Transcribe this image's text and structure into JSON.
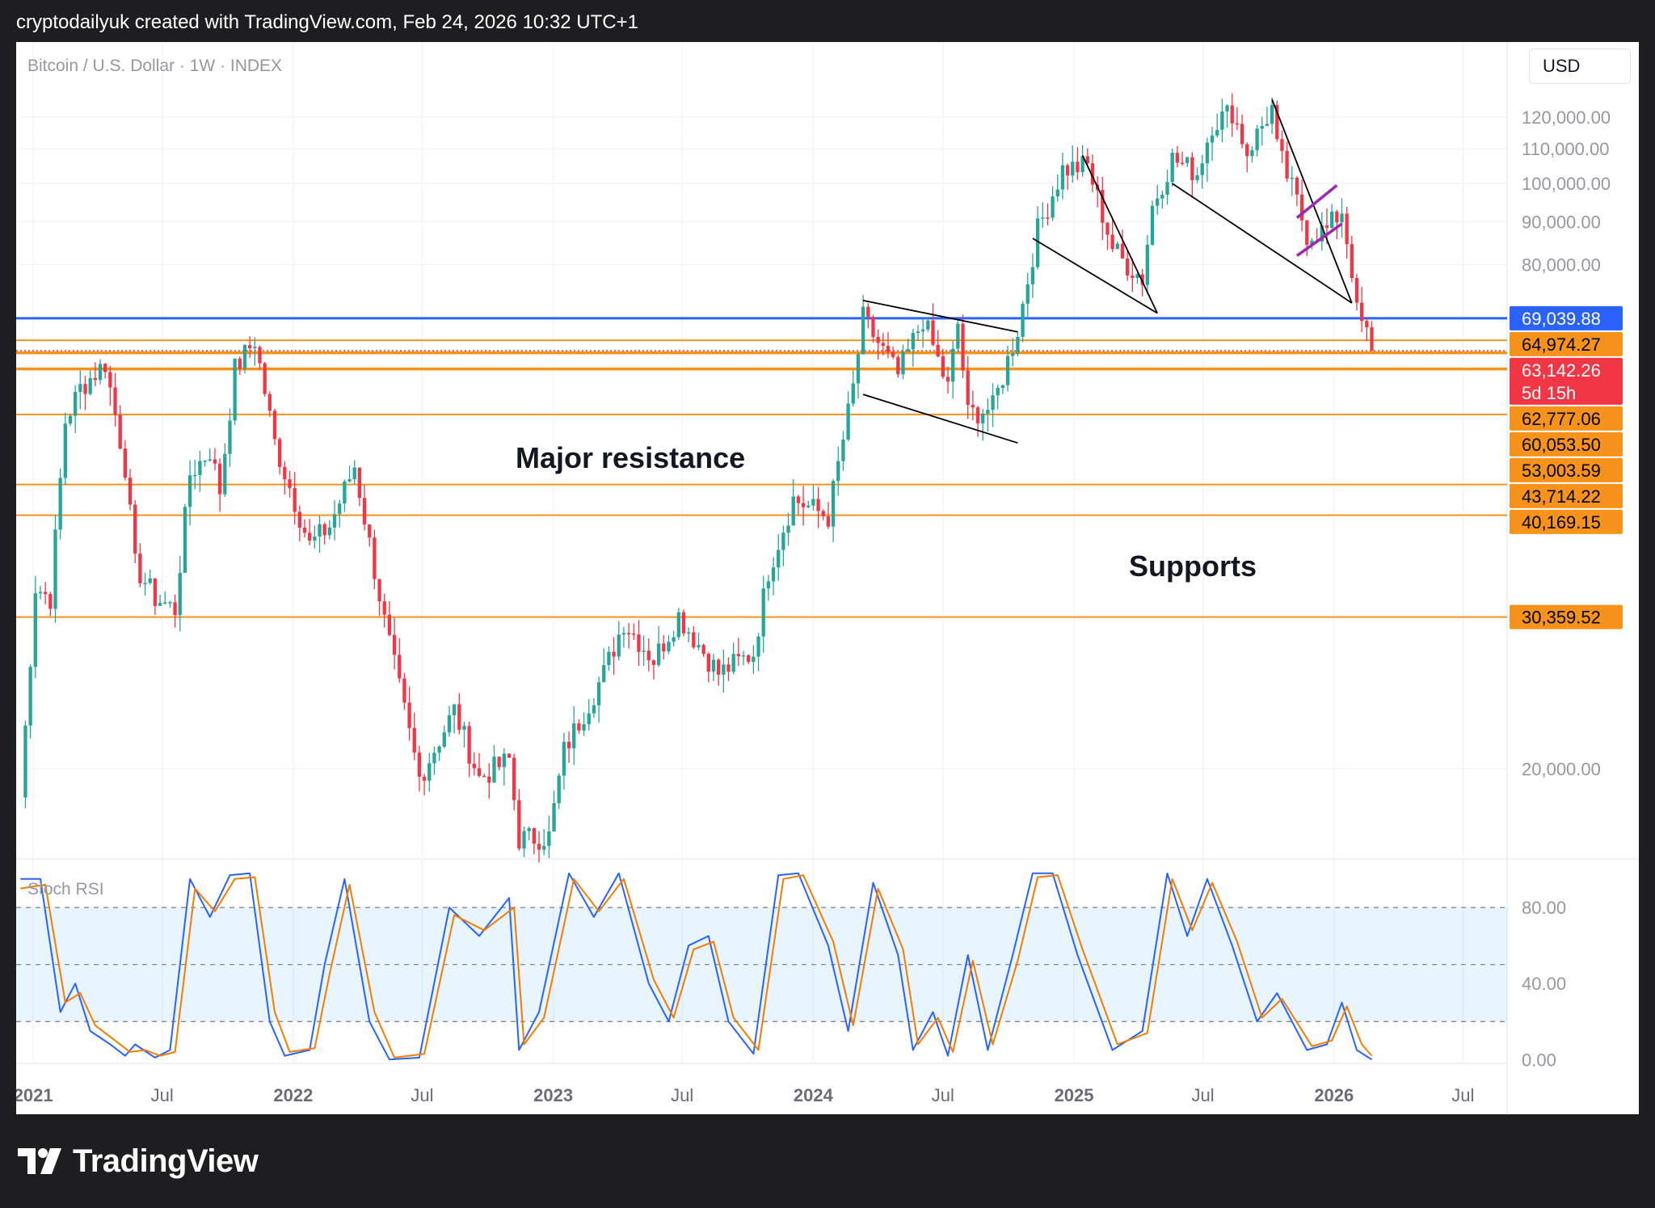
{
  "header": {
    "attribution": "cryptodailyuk created with TradingView.com, Feb 24, 2026 10:32 UTC+1"
  },
  "currency_button": "USD",
  "footer": {
    "brand": "TradingView"
  },
  "colors": {
    "up": "#26a69a",
    "down": "#f23645",
    "resistance": "#2962ff",
    "support": "#f7931a",
    "current": "#f23645",
    "stoch_k": "#2962ff",
    "stoch_d": "#f57c00",
    "pattern": "#000000",
    "flag": "#9c27b0"
  },
  "annotations": {
    "resistance": "Major resistance",
    "supports": "Supports"
  },
  "chart_data": [
    {
      "type": "candlestick",
      "title": "Bitcoin / U.S. Dollar · 1W · INDEX",
      "y_scale": "log",
      "y_ticks": [
        20000,
        80000,
        90000,
        100000,
        110000,
        120000
      ],
      "y_tick_labels": [
        "20,000.00",
        "80,000.00",
        "90,000.00",
        "100,000.00",
        "110,000.00",
        "120,000.00"
      ],
      "x_tick_labels": [
        "2021",
        "Jul",
        "2022",
        "Jul",
        "2023",
        "Jul",
        "2024",
        "Jul",
        "2025",
        "Jul",
        "2026",
        "Jul"
      ],
      "x_ticks": [
        "2021-01-01",
        "2021-07-01",
        "2022-01-01",
        "2022-07-01",
        "2023-01-01",
        "2023-07-01",
        "2024-01-01",
        "2024-07-01",
        "2025-01-01",
        "2025-07-01",
        "2026-01-01",
        "2026-07-01"
      ],
      "x_range": [
        "2020-12-08",
        "2026-09-01"
      ],
      "y_range": [
        16000,
        135000
      ],
      "grid": true,
      "anchor_points": [
        [
          "2020-12-14",
          18500
        ],
        [
          "2021-01-04",
          33000
        ],
        [
          "2021-01-25",
          32000
        ],
        [
          "2021-02-15",
          52000
        ],
        [
          "2021-03-08",
          57000
        ],
        [
          "2021-04-12",
          61000
        ],
        [
          "2021-05-10",
          46000
        ],
        [
          "2021-05-24",
          35000
        ],
        [
          "2021-06-21",
          32000
        ],
        [
          "2021-07-19",
          31000
        ],
        [
          "2021-08-09",
          45000
        ],
        [
          "2021-09-06",
          48000
        ],
        [
          "2021-09-20",
          43000
        ],
        [
          "2021-10-11",
          60000
        ],
        [
          "2021-11-08",
          65000
        ],
        [
          "2021-12-06",
          49000
        ],
        [
          "2022-01-24",
          37000
        ],
        [
          "2022-02-21",
          39000
        ],
        [
          "2022-03-28",
          46000
        ],
        [
          "2022-05-09",
          30000
        ],
        [
          "2022-06-13",
          22000
        ],
        [
          "2022-06-27",
          19500
        ],
        [
          "2022-08-15",
          23500
        ],
        [
          "2022-09-19",
          19500
        ],
        [
          "2022-10-31",
          20500
        ],
        [
          "2022-11-14",
          16500
        ],
        [
          "2022-12-26",
          16600
        ],
        [
          "2023-01-16",
          21000
        ],
        [
          "2023-02-20",
          24000
        ],
        [
          "2023-03-13",
          26000
        ],
        [
          "2023-04-10",
          30000
        ],
        [
          "2023-05-22",
          27000
        ],
        [
          "2023-06-26",
          30500
        ],
        [
          "2023-08-21",
          26000
        ],
        [
          "2023-10-09",
          27500
        ],
        [
          "2023-10-30",
          34500
        ],
        [
          "2023-12-04",
          42000
        ],
        [
          "2024-01-22",
          40000
        ],
        [
          "2024-02-26",
          57000
        ],
        [
          "2024-03-11",
          69000
        ],
        [
          "2024-04-29",
          59000
        ],
        [
          "2024-06-03",
          69000
        ],
        [
          "2024-07-08",
          57000
        ],
        [
          "2024-07-22",
          68000
        ],
        [
          "2024-08-05",
          53000
        ],
        [
          "2024-09-09",
          54000
        ],
        [
          "2024-10-14",
          67000
        ],
        [
          "2024-11-11",
          88000
        ],
        [
          "2024-12-16",
          104000
        ],
        [
          "2025-01-20",
          105000
        ],
        [
          "2025-02-24",
          84000
        ],
        [
          "2025-03-10",
          81000
        ],
        [
          "2025-04-07",
          77000
        ],
        [
          "2025-04-21",
          94000
        ],
        [
          "2025-05-19",
          107000
        ],
        [
          "2025-06-23",
          103000
        ],
        [
          "2025-07-14",
          118000
        ],
        [
          "2025-08-11",
          122000
        ],
        [
          "2025-09-01",
          109000
        ],
        [
          "2025-10-06",
          123000
        ],
        [
          "2025-10-13",
          110000
        ],
        [
          "2025-11-10",
          95000
        ],
        [
          "2025-11-24",
          87000
        ],
        [
          "2025-12-22",
          88000
        ],
        [
          "2026-01-12",
          93000
        ],
        [
          "2026-01-26",
          79000
        ],
        [
          "2026-02-02",
          70000
        ],
        [
          "2026-02-16",
          66000
        ],
        [
          "2026-02-23",
          63142
        ]
      ],
      "price_lines": [
        {
          "value": 69039.88,
          "label": "69,039.88",
          "kind": "resistance"
        },
        {
          "value": 64974.27,
          "label": "64,974.27",
          "kind": "support"
        },
        {
          "value": 63142.26,
          "label": "63,142.26",
          "countdown": "5d 15h",
          "kind": "current"
        },
        {
          "value": 62777.06,
          "label": "62,777.06",
          "kind": "support"
        },
        {
          "value": 60053.5,
          "label": "60,053.50",
          "kind": "support"
        },
        {
          "value": 53003.59,
          "label": "53,003.59",
          "kind": "support"
        },
        {
          "value": 43714.22,
          "label": "43,714.22",
          "kind": "support"
        },
        {
          "value": 40169.15,
          "label": "40,169.15",
          "kind": "support"
        },
        {
          "value": 30359.52,
          "label": "30,359.52",
          "kind": "support"
        }
      ],
      "trendlines": [
        {
          "kind": "pattern",
          "points": [
            [
              "2024-03-11",
              72500
            ],
            [
              "2024-10-14",
              66500
            ]
          ]
        },
        {
          "kind": "pattern",
          "points": [
            [
              "2024-03-11",
              56000
            ],
            [
              "2024-10-14",
              49000
            ]
          ]
        },
        {
          "kind": "pattern",
          "points": [
            [
              "2024-11-04",
              86000
            ],
            [
              "2025-04-28",
              70000
            ]
          ]
        },
        {
          "kind": "pattern",
          "points": [
            [
              "2025-01-13",
              108000
            ],
            [
              "2025-04-28",
              70000
            ]
          ]
        },
        {
          "kind": "pattern",
          "points": [
            [
              "2025-05-19",
              100000
            ],
            [
              "2026-01-26",
              72000
            ]
          ]
        },
        {
          "kind": "pattern",
          "points": [
            [
              "2025-10-06",
              126000
            ],
            [
              "2026-01-26",
              72000
            ]
          ]
        },
        {
          "kind": "flag",
          "points": [
            [
              "2025-11-10",
              91000
            ],
            [
              "2026-01-05",
              99500
            ]
          ]
        },
        {
          "kind": "flag",
          "points": [
            [
              "2025-11-10",
              82000
            ],
            [
              "2026-01-12",
              89500
            ]
          ]
        }
      ]
    },
    {
      "type": "line",
      "title": "Stoch RSI",
      "y_ticks": [
        0,
        40,
        80
      ],
      "y_tick_labels": [
        "0.00",
        "40.00",
        "80.00"
      ],
      "y_range": [
        -2,
        103
      ],
      "band": [
        20,
        80
      ],
      "midline": 50,
      "series": [
        {
          "key": "k",
          "values": [
            [
              "2020-12-14",
              95
            ],
            [
              "2021-01-11",
              95
            ],
            [
              "2021-02-08",
              25
            ],
            [
              "2021-03-01",
              40
            ],
            [
              "2021-03-22",
              15
            ],
            [
              "2021-04-19",
              8
            ],
            [
              "2021-05-10",
              2
            ],
            [
              "2021-05-24",
              8
            ],
            [
              "2021-06-21",
              1
            ],
            [
              "2021-07-12",
              5
            ],
            [
              "2021-08-09",
              95
            ],
            [
              "2021-09-06",
              75
            ],
            [
              "2021-10-04",
              97
            ],
            [
              "2021-11-01",
              98
            ],
            [
              "2021-11-29",
              20
            ],
            [
              "2021-12-20",
              2
            ],
            [
              "2022-01-24",
              5
            ],
            [
              "2022-02-14",
              50
            ],
            [
              "2022-03-14",
              95
            ],
            [
              "2022-04-18",
              20
            ],
            [
              "2022-05-16",
              0
            ],
            [
              "2022-06-27",
              1
            ],
            [
              "2022-08-08",
              80
            ],
            [
              "2022-09-19",
              65
            ],
            [
              "2022-10-31",
              85
            ],
            [
              "2022-11-14",
              5
            ],
            [
              "2022-12-12",
              25
            ],
            [
              "2023-01-23",
              98
            ],
            [
              "2023-02-27",
              75
            ],
            [
              "2023-04-03",
              98
            ],
            [
              "2023-05-15",
              40
            ],
            [
              "2023-06-12",
              20
            ],
            [
              "2023-07-10",
              60
            ],
            [
              "2023-08-07",
              65
            ],
            [
              "2023-09-04",
              20
            ],
            [
              "2023-10-09",
              3
            ],
            [
              "2023-11-13",
              97
            ],
            [
              "2023-12-11",
              98
            ],
            [
              "2024-01-22",
              60
            ],
            [
              "2024-02-19",
              15
            ],
            [
              "2024-03-25",
              93
            ],
            [
              "2024-04-29",
              55
            ],
            [
              "2024-05-20",
              5
            ],
            [
              "2024-06-17",
              25
            ],
            [
              "2024-07-08",
              2
            ],
            [
              "2024-08-05",
              55
            ],
            [
              "2024-09-02",
              5
            ],
            [
              "2024-10-07",
              55
            ],
            [
              "2024-11-04",
              98
            ],
            [
              "2024-12-02",
              98
            ],
            [
              "2025-01-06",
              55
            ],
            [
              "2025-02-24",
              5
            ],
            [
              "2025-04-07",
              15
            ],
            [
              "2025-05-12",
              98
            ],
            [
              "2025-06-09",
              65
            ],
            [
              "2025-07-07",
              95
            ],
            [
              "2025-08-11",
              60
            ],
            [
              "2025-09-15",
              20
            ],
            [
              "2025-10-13",
              35
            ],
            [
              "2025-11-24",
              5
            ],
            [
              "2025-12-22",
              8
            ],
            [
              "2026-01-12",
              30
            ],
            [
              "2026-02-02",
              5
            ],
            [
              "2026-02-23",
              0
            ]
          ]
        },
        {
          "key": "d",
          "values": [
            [
              "2020-12-14",
              90
            ],
            [
              "2021-01-18",
              92
            ],
            [
              "2021-02-15",
              30
            ],
            [
              "2021-03-08",
              35
            ],
            [
              "2021-03-29",
              18
            ],
            [
              "2021-04-26",
              10
            ],
            [
              "2021-05-17",
              4
            ],
            [
              "2021-06-07",
              5
            ],
            [
              "2021-06-28",
              2
            ],
            [
              "2021-07-19",
              4
            ],
            [
              "2021-08-16",
              90
            ],
            [
              "2021-09-13",
              78
            ],
            [
              "2021-10-11",
              95
            ],
            [
              "2021-11-08",
              96
            ],
            [
              "2021-12-06",
              25
            ],
            [
              "2021-12-27",
              4
            ],
            [
              "2022-01-31",
              6
            ],
            [
              "2022-02-21",
              45
            ],
            [
              "2022-03-21",
              92
            ],
            [
              "2022-04-25",
              25
            ],
            [
              "2022-05-23",
              1
            ],
            [
              "2022-07-04",
              3
            ],
            [
              "2022-08-15",
              76
            ],
            [
              "2022-09-26",
              68
            ],
            [
              "2022-11-07",
              80
            ],
            [
              "2022-11-21",
              8
            ],
            [
              "2022-12-19",
              22
            ],
            [
              "2023-01-30",
              95
            ],
            [
              "2023-03-06",
              78
            ],
            [
              "2023-04-10",
              95
            ],
            [
              "2023-05-22",
              42
            ],
            [
              "2023-06-19",
              22
            ],
            [
              "2023-07-17",
              58
            ],
            [
              "2023-08-14",
              62
            ],
            [
              "2023-09-11",
              22
            ],
            [
              "2023-10-16",
              5
            ],
            [
              "2023-11-20",
              95
            ],
            [
              "2023-12-18",
              97
            ],
            [
              "2024-01-29",
              62
            ],
            [
              "2024-02-26",
              18
            ],
            [
              "2024-04-01",
              90
            ],
            [
              "2024-05-06",
              58
            ],
            [
              "2024-05-27",
              8
            ],
            [
              "2024-06-24",
              22
            ],
            [
              "2024-07-15",
              4
            ],
            [
              "2024-08-12",
              52
            ],
            [
              "2024-09-09",
              8
            ],
            [
              "2024-10-14",
              52
            ],
            [
              "2024-11-11",
              96
            ],
            [
              "2024-12-09",
              97
            ],
            [
              "2025-01-13",
              58
            ],
            [
              "2025-03-03",
              8
            ],
            [
              "2025-04-14",
              14
            ],
            [
              "2025-05-19",
              95
            ],
            [
              "2025-06-16",
              68
            ],
            [
              "2025-07-14",
              93
            ],
            [
              "2025-08-18",
              62
            ],
            [
              "2025-09-22",
              22
            ],
            [
              "2025-10-20",
              32
            ],
            [
              "2025-12-01",
              7
            ],
            [
              "2025-12-29",
              10
            ],
            [
              "2026-01-19",
              28
            ],
            [
              "2026-02-09",
              8
            ],
            [
              "2026-02-23",
              2
            ]
          ]
        }
      ]
    }
  ]
}
